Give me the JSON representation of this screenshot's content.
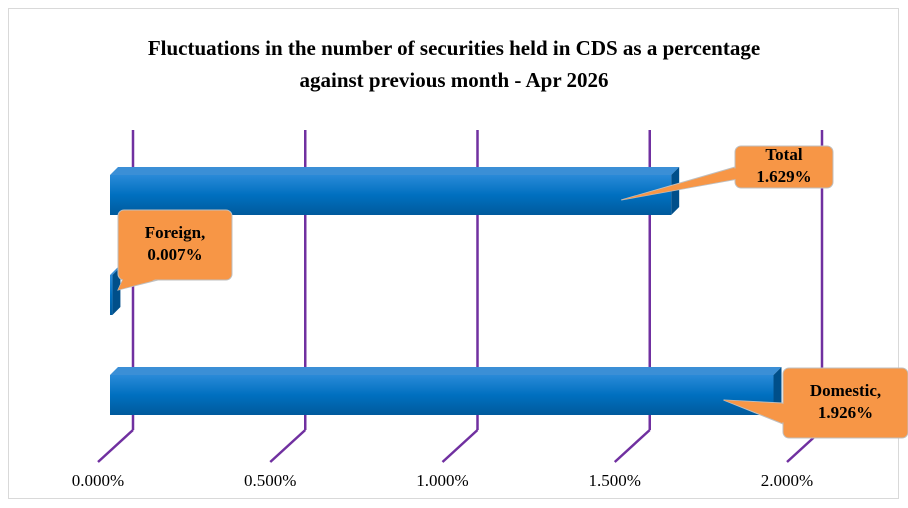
{
  "chart_data": {
    "type": "bar",
    "orientation": "horizontal",
    "title": "Fluctuations in the number of securities held in CDS as a percentage against previous month - Apr 2026",
    "categories": [
      "Total",
      "Foreign,",
      "Domestic,"
    ],
    "values": [
      1.629,
      0.007,
      1.926
    ],
    "value_labels": [
      "1.629%",
      "0.007%",
      "1.926%"
    ],
    "color": "#0070c0",
    "label_color": "#f79646",
    "grid_color": "#7030a0",
    "xlim": [
      0,
      2
    ],
    "xticks": [
      {
        "value": 0,
        "label": "0.000%"
      },
      {
        "value": 0.5,
        "label": "0.500%"
      },
      {
        "value": 1,
        "label": "1.000%"
      },
      {
        "value": 1.5,
        "label": "1.500%"
      },
      {
        "value": 2,
        "label": "2.000%"
      }
    ],
    "grid": true
  }
}
